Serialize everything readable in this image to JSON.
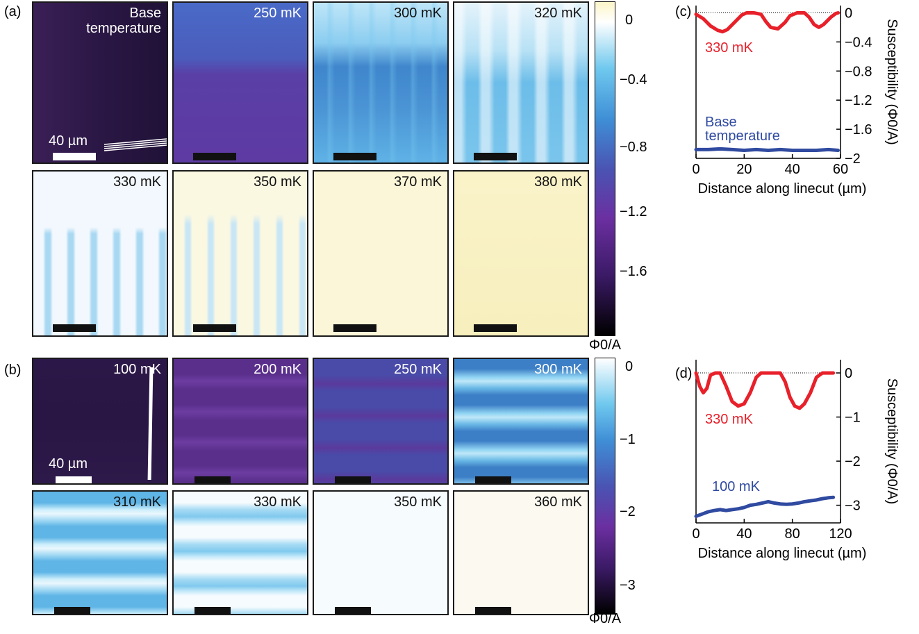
{
  "panel_labels": {
    "a": "(a)",
    "b": "(b)",
    "c": "(c)",
    "d": "(d)"
  },
  "panel_a": {
    "tiles": [
      {
        "temp_line1": "Base",
        "temp_line2": "temperature",
        "text_style": "light",
        "scale_label": "40 µm",
        "bg": "#2d1946"
      },
      {
        "temp_line1": "250 mK",
        "text_style": "light",
        "bg": "#4c4eab"
      },
      {
        "temp_line1": "300 mK",
        "text_style": "dark",
        "bg": "#4aa2dc"
      },
      {
        "temp_line1": "320 mK",
        "text_style": "dark",
        "bg": "#8ed0ef"
      },
      {
        "temp_line1": "330 mK",
        "text_style": "dark",
        "bg": "#eef6fc"
      },
      {
        "temp_line1": "350 mK",
        "text_style": "dark",
        "bg": "#fbf7de"
      },
      {
        "temp_line1": "370 mK",
        "text_style": "dark",
        "bg": "#fbf6d8"
      },
      {
        "temp_line1": "380 mK",
        "text_style": "dark",
        "bg": "#f8f1c2"
      }
    ],
    "colorbar": {
      "ticks": [
        "0",
        "−0.4",
        "−0.8",
        "−1.2",
        "−1.6"
      ],
      "unit": "Φ0/A"
    }
  },
  "panel_b": {
    "tiles": [
      {
        "temp_line1": "100 mK",
        "text_style": "light",
        "scale_label": "40 µm",
        "bg": "#2a1846"
      },
      {
        "temp_line1": "200 mK",
        "text_style": "light",
        "bg": "#5a2f8c"
      },
      {
        "temp_line1": "250 mK",
        "text_style": "light",
        "bg": "#4a3f9e"
      },
      {
        "temp_line1": "300 mK",
        "text_style": "light",
        "bg": "#3e8ccc"
      },
      {
        "temp_line1": "310 mK",
        "text_style": "dark",
        "bg": "#5ab6e6"
      },
      {
        "temp_line1": "330 mK",
        "text_style": "dark",
        "bg": "#8bcdf0"
      },
      {
        "temp_line1": "350 mK",
        "text_style": "dark",
        "bg": "#f6fbfe"
      },
      {
        "temp_line1": "360 mK",
        "text_style": "dark",
        "bg": "#fbf9f0"
      }
    ],
    "colorbar": {
      "ticks": [
        "0",
        "−1",
        "−2",
        "−3"
      ],
      "unit": "Φ0/A"
    }
  },
  "chart_data": [
    {
      "type": "line",
      "panel": "c",
      "xlabel": "Distance along linecut (µm)",
      "ylabel": "Susceptibility (Φ0/A)",
      "xlim": [
        0,
        60
      ],
      "ylim": [
        -2,
        0.1
      ],
      "x_ticks": [
        "0",
        "20",
        "40",
        "60"
      ],
      "y_ticks": [
        "0",
        "−0.4",
        "−0.8",
        "−1.2",
        "−1.6",
        "−2"
      ],
      "series": [
        {
          "name": "330 mK",
          "color": "#e8202a",
          "x": [
            0,
            3,
            6,
            9,
            11,
            13,
            16,
            19,
            21,
            24,
            27,
            29,
            31,
            34,
            37,
            39,
            42,
            45,
            47,
            49,
            51,
            53,
            56,
            58,
            59
          ],
          "y": [
            -0.02,
            -0.08,
            -0.18,
            -0.24,
            -0.26,
            -0.23,
            -0.13,
            -0.03,
            0.0,
            0.0,
            -0.02,
            -0.12,
            -0.2,
            -0.22,
            -0.13,
            -0.04,
            0.0,
            0.0,
            -0.06,
            -0.16,
            -0.2,
            -0.16,
            -0.06,
            -0.01,
            0.0
          ]
        },
        {
          "name": "Base temperature",
          "color": "#2f4aa0",
          "x": [
            0,
            5,
            10,
            15,
            20,
            25,
            30,
            35,
            40,
            45,
            50,
            55,
            59
          ],
          "y": [
            -1.88,
            -1.88,
            -1.87,
            -1.88,
            -1.89,
            -1.88,
            -1.89,
            -1.88,
            -1.89,
            -1.89,
            -1.89,
            -1.88,
            -1.89
          ]
        }
      ]
    },
    {
      "type": "line",
      "panel": "d",
      "xlabel": "Distance along linecut (µm)",
      "ylabel": "Susceptibility (Φ0/A)",
      "xlim": [
        0,
        120
      ],
      "ylim": [
        -3.4,
        0.3
      ],
      "x_ticks": [
        "0",
        "40",
        "80",
        "120"
      ],
      "y_ticks": [
        "0",
        "−1",
        "−2",
        "−3"
      ],
      "series": [
        {
          "name": "330 mK",
          "color": "#e8202a",
          "x": [
            0,
            3,
            6,
            9,
            12,
            16,
            20,
            25,
            30,
            35,
            40,
            45,
            50,
            54,
            58,
            62,
            66,
            70,
            74,
            78,
            82,
            86,
            90,
            95,
            100,
            105,
            110,
            114
          ],
          "y": [
            0.0,
            -0.3,
            -0.45,
            -0.35,
            -0.05,
            0.0,
            0.0,
            -0.3,
            -0.65,
            -0.75,
            -0.7,
            -0.45,
            -0.1,
            0.0,
            0.0,
            0.0,
            0.0,
            0.0,
            -0.2,
            -0.55,
            -0.75,
            -0.8,
            -0.7,
            -0.45,
            -0.1,
            0.0,
            0.0,
            0.0
          ]
        },
        {
          "name": "100 mK",
          "color": "#2f4aa0",
          "x": [
            0,
            5,
            10,
            15,
            20,
            25,
            30,
            35,
            40,
            45,
            50,
            55,
            60,
            65,
            70,
            75,
            80,
            85,
            90,
            95,
            100,
            105,
            110,
            114
          ],
          "y": [
            -3.25,
            -3.2,
            -3.15,
            -3.12,
            -3.1,
            -3.12,
            -3.1,
            -3.08,
            -3.05,
            -3.0,
            -2.98,
            -2.95,
            -2.92,
            -2.95,
            -2.97,
            -2.98,
            -2.97,
            -2.95,
            -2.92,
            -2.9,
            -2.88,
            -2.85,
            -2.83,
            -2.82
          ]
        }
      ]
    }
  ]
}
